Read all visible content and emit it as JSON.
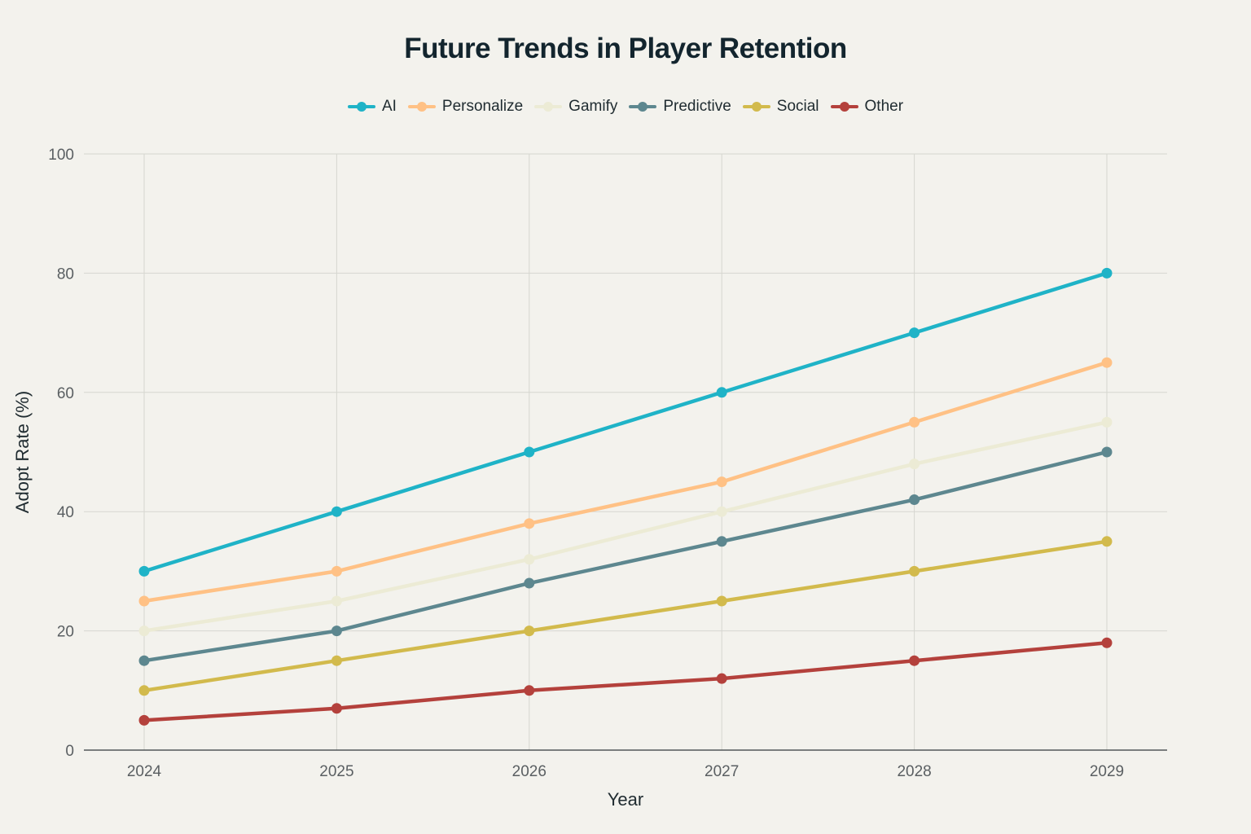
{
  "chart_data": {
    "type": "line",
    "title": "Future Trends in Player Retention",
    "xlabel": "Year",
    "ylabel": "Adopt Rate (%)",
    "x": [
      "2024",
      "2025",
      "2026",
      "2027",
      "2028",
      "2029"
    ],
    "ylim": [
      0,
      100
    ],
    "yticks": [
      "0",
      "20",
      "40",
      "60",
      "80",
      "100"
    ],
    "grid": true,
    "legend_position": "top-center",
    "series": [
      {
        "name": "AI",
        "color": "#1fb3c7",
        "values": [
          30,
          40,
          50,
          60,
          70,
          80
        ]
      },
      {
        "name": "Personalize",
        "color": "#ffc185",
        "values": [
          25,
          30,
          38,
          45,
          55,
          65
        ]
      },
      {
        "name": "Gamify",
        "color": "#ecebd5",
        "values": [
          20,
          25,
          32,
          40,
          48,
          55
        ]
      },
      {
        "name": "Predictive",
        "color": "#5d878f",
        "values": [
          15,
          20,
          28,
          35,
          42,
          50
        ]
      },
      {
        "name": "Social",
        "color": "#d2ba4c",
        "values": [
          10,
          15,
          20,
          25,
          30,
          35
        ]
      },
      {
        "name": "Other",
        "color": "#b4413c",
        "values": [
          5,
          7,
          10,
          12,
          15,
          18
        ]
      }
    ]
  }
}
